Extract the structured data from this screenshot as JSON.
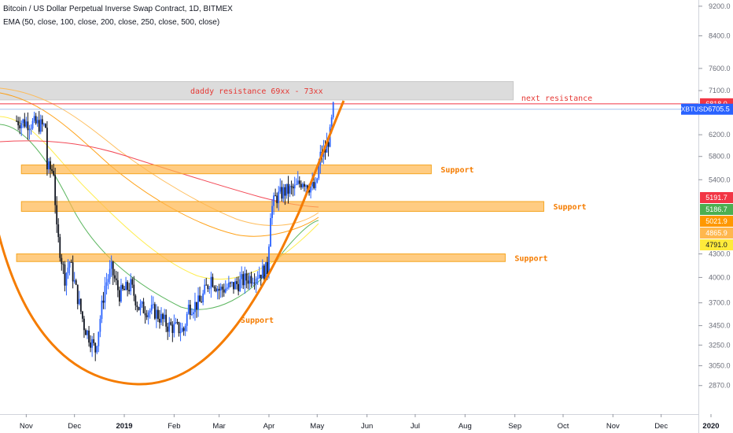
{
  "header": {
    "title": "Bitcoin / US Dollar Perpetual Inverse Swap Contract, 1D, BITMEX",
    "indicator": "EMA (50, close, 100, close, 200, close, 250, close, 500, close)"
  },
  "chart_data": {
    "type": "candlestick",
    "x_ticks": [
      "Nov",
      "Dec",
      "2019",
      "Feb",
      "Mar",
      "Apr",
      "May",
      "Jun",
      "Jul",
      "Aug",
      "Sep",
      "Oct",
      "Nov",
      "Dec",
      "2020"
    ],
    "y_ticks": [
      9200,
      8400,
      7600,
      7100,
      6200,
      5800,
      5400,
      4300,
      4000,
      3700,
      3450,
      3250,
      3050,
      2870
    ],
    "y_scale": "log",
    "ylim": [
      2700,
      9700
    ],
    "ticker": "XBTUSD",
    "last_price": "6705.5",
    "price_labels": [
      {
        "value": "6818.0",
        "color": "#f23645"
      },
      {
        "value": "5191.7",
        "color": "#f23645"
      },
      {
        "value": "5186.7",
        "color": "#4caf50"
      },
      {
        "value": "5021.9",
        "color": "#ff9800"
      },
      {
        "value": "4865.9",
        "color": "#ffb74d"
      },
      {
        "value": "4791.0",
        "color": "#ffeb3b"
      }
    ],
    "price_path": [
      [
        "2018-10-26",
        6470
      ],
      [
        "2018-11-08",
        6400
      ],
      [
        "2018-11-13",
        6350
      ],
      [
        "2018-11-14",
        5600
      ],
      [
        "2018-11-18",
        5550
      ],
      [
        "2018-11-20",
        4600
      ],
      [
        "2018-11-25",
        4000
      ],
      [
        "2018-11-28",
        4200
      ],
      [
        "2018-12-07",
        3450
      ],
      [
        "2018-12-14",
        3200
      ],
      [
        "2018-12-20",
        3900
      ],
      [
        "2018-12-24",
        4100
      ],
      [
        "2018-12-29",
        3800
      ],
      [
        "2019-01-05",
        3900
      ],
      [
        "2019-01-10",
        3650
      ],
      [
        "2019-01-20",
        3600
      ],
      [
        "2019-01-28",
        3450
      ],
      [
        "2019-02-07",
        3400
      ],
      [
        "2019-02-10",
        3650
      ],
      [
        "2019-02-17",
        3700
      ],
      [
        "2019-02-24",
        4000
      ],
      [
        "2019-03-01",
        3850
      ],
      [
        "2019-03-10",
        3900
      ],
      [
        "2019-03-20",
        4000
      ],
      [
        "2019-03-31",
        4100
      ],
      [
        "2019-04-02",
        4900
      ],
      [
        "2019-04-05",
        5100
      ],
      [
        "2019-04-10",
        5200
      ],
      [
        "2019-04-17",
        5250
      ],
      [
        "2019-04-22",
        5400
      ],
      [
        "2019-04-26",
        5300
      ],
      [
        "2019-04-30",
        5250
      ],
      [
        "2019-05-03",
        5800
      ],
      [
        "2019-05-06",
        5900
      ],
      [
        "2019-05-09",
        6200
      ],
      [
        "2019-05-11",
        6705.5
      ]
    ],
    "resistance_zones": [
      {
        "label": "daddy resistance 69xx - 73xx",
        "low": 6900,
        "high": 7300,
        "x_start": "2018-10-01",
        "x_end": "2019-08-31"
      }
    ],
    "resistance_lines": [
      {
        "label": "next resistance",
        "value": 6818
      }
    ],
    "support_zones": [
      {
        "label": "Support",
        "low": 5500,
        "high": 5650,
        "x_start": "2018-10-29",
        "x_end": "2019-07-11"
      },
      {
        "label": "Support",
        "low": 4900,
        "high": 5050,
        "x_start": "2018-10-29",
        "x_end": "2019-09-19"
      },
      {
        "label": "Support",
        "low": 4200,
        "high": 4300,
        "x_start": "2018-10-26",
        "x_end": "2019-08-26"
      }
    ],
    "cup_curve_label": "Support",
    "ema_series": [
      {
        "name": "EMA 50",
        "color": "#4caf50"
      },
      {
        "name": "EMA 100",
        "color": "#ffeb3b"
      },
      {
        "name": "EMA 200",
        "color": "#ff9800"
      },
      {
        "name": "EMA 250",
        "color": "#ffb74d"
      },
      {
        "name": "EMA 500",
        "color": "#f23645"
      }
    ],
    "colors": {
      "up": "#2962ff",
      "down": "#131722",
      "zone": "#ffb74d",
      "resistance": "#f23645",
      "cup": "#f57c00",
      "resistance_box": "#d6d6d6"
    }
  }
}
